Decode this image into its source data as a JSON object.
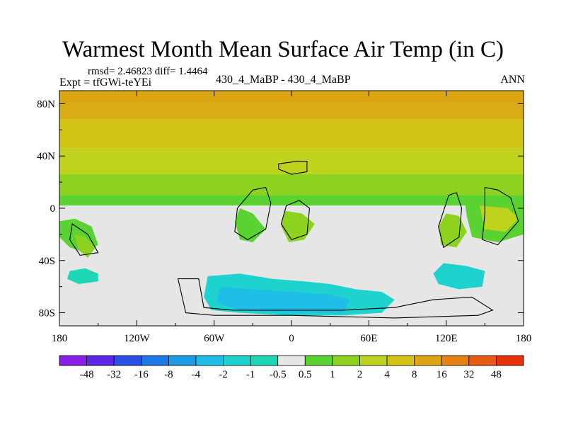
{
  "chart_data": {
    "type": "heatmap",
    "title": "Warmest Month Mean Surface Air Temp (in C)",
    "stats": "rmsd= 2.46823 diff= 1.4464",
    "experiment": "Expt = tfGWi-teYEi",
    "center_label": "430_4_MaBP - 430_4_MaBP",
    "season": "ANN",
    "x_range": [
      -180,
      180
    ],
    "y_range": [
      -90,
      90
    ],
    "x_ticks": [
      {
        "value": -180,
        "label": "180"
      },
      {
        "value": -120,
        "label": "120W"
      },
      {
        "value": -60,
        "label": "60W"
      },
      {
        "value": 0,
        "label": "0"
      },
      {
        "value": 60,
        "label": "60E"
      },
      {
        "value": 120,
        "label": "120E"
      },
      {
        "value": 180,
        "label": "180"
      }
    ],
    "y_ticks": [
      {
        "value": 80,
        "label": "80N"
      },
      {
        "value": 40,
        "label": "40N"
      },
      {
        "value": 0,
        "label": "0"
      },
      {
        "value": -40,
        "label": "40S"
      },
      {
        "value": -80,
        "label": "80S"
      }
    ],
    "colorbar": {
      "levels": [
        "-48",
        "-32",
        "-16",
        "-8",
        "-4",
        "-2",
        "-1",
        "-0.5",
        "0.5",
        "1",
        "2",
        "4",
        "8",
        "16",
        "32",
        "48"
      ],
      "colors": [
        "#8a1ee6",
        "#5a28e6",
        "#2a50e6",
        "#1e78e6",
        "#1e9be6",
        "#1ebee6",
        "#1ed2cd",
        "#1ed7b4",
        "#e6e6e6",
        "#5ad232",
        "#8cd21e",
        "#bed21e",
        "#d2c314",
        "#dca514",
        "#e68214",
        "#e65a14",
        "#e6320a"
      ]
    },
    "bands": [
      {
        "lat_from": 90,
        "lat_to": 80,
        "color": "#dca514"
      },
      {
        "lat_from": 80,
        "lat_to": 68,
        "color": "#d9ab14"
      },
      {
        "lat_from": 68,
        "lat_to": 46,
        "color": "#d2c314"
      },
      {
        "lat_from": 46,
        "lat_to": 26,
        "color": "#bed21e"
      },
      {
        "lat_from": 26,
        "lat_to": 10,
        "color": "#8cd21e"
      },
      {
        "lat_from": 10,
        "lat_to": 2,
        "color": "#5ad232"
      },
      {
        "lat_from": 2,
        "lat_to": -90,
        "color": "#e6e6e6"
      }
    ],
    "patches": [
      {
        "name": "south-cyan-region",
        "color": "#1ed2cd",
        "points": [
          [
            -65,
            -52
          ],
          [
            -40,
            -50
          ],
          [
            -15,
            -54
          ],
          [
            10,
            -56
          ],
          [
            30,
            -58
          ],
          [
            50,
            -62
          ],
          [
            70,
            -64
          ],
          [
            80,
            -70
          ],
          [
            70,
            -80
          ],
          [
            40,
            -82
          ],
          [
            0,
            -82
          ],
          [
            -40,
            -80
          ],
          [
            -62,
            -78
          ],
          [
            -68,
            -68
          ]
        ]
      },
      {
        "name": "south-blue-region",
        "color": "#1ebee6",
        "points": [
          [
            -55,
            -60
          ],
          [
            -30,
            -62
          ],
          [
            0,
            -64
          ],
          [
            30,
            -66
          ],
          [
            45,
            -70
          ],
          [
            40,
            -80
          ],
          [
            0,
            -80
          ],
          [
            -40,
            -78
          ],
          [
            -58,
            -72
          ]
        ]
      },
      {
        "name": "indian-cyan-region",
        "color": "#1ed2cd",
        "points": [
          [
            118,
            -42
          ],
          [
            135,
            -44
          ],
          [
            150,
            -48
          ],
          [
            148,
            -60
          ],
          [
            130,
            -62
          ],
          [
            114,
            -58
          ],
          [
            110,
            -50
          ]
        ]
      },
      {
        "name": "pacific-cyan-region",
        "color": "#1ed7b4",
        "points": [
          [
            -172,
            -48
          ],
          [
            -160,
            -46
          ],
          [
            -150,
            -50
          ],
          [
            -150,
            -56
          ],
          [
            -165,
            -58
          ],
          [
            -174,
            -54
          ]
        ]
      },
      {
        "name": "sw-green-region",
        "color": "#5ad232",
        "points": [
          [
            -180,
            -10
          ],
          [
            -168,
            -8
          ],
          [
            -155,
            -14
          ],
          [
            -150,
            -28
          ],
          [
            -160,
            -34
          ],
          [
            -172,
            -30
          ],
          [
            -180,
            -22
          ]
        ]
      },
      {
        "name": "s-america-green",
        "color": "#8cd21e",
        "points": [
          [
            -168,
            -20
          ],
          [
            -160,
            -22
          ],
          [
            -152,
            -30
          ],
          [
            -158,
            -38
          ],
          [
            -165,
            -32
          ]
        ]
      },
      {
        "name": "nw-africa-green",
        "color": "#5ad232",
        "points": [
          [
            -40,
            0
          ],
          [
            -30,
            -4
          ],
          [
            -20,
            -16
          ],
          [
            -30,
            -26
          ],
          [
            -40,
            -24
          ],
          [
            -44,
            -10
          ]
        ]
      },
      {
        "name": "africa-green",
        "color": "#8cd21e",
        "points": [
          [
            -5,
            -2
          ],
          [
            8,
            -4
          ],
          [
            18,
            -12
          ],
          [
            10,
            -24
          ],
          [
            -2,
            -26
          ],
          [
            -8,
            -14
          ]
        ]
      },
      {
        "name": "australia-green",
        "color": "#8cd21e",
        "points": [
          [
            120,
            -4
          ],
          [
            130,
            -6
          ],
          [
            136,
            -18
          ],
          [
            128,
            -30
          ],
          [
            116,
            -28
          ],
          [
            114,
            -14
          ]
        ]
      },
      {
        "name": "east-green",
        "color": "#5ad232",
        "points": [
          [
            134,
            8
          ],
          [
            160,
            6
          ],
          [
            180,
            4
          ],
          [
            180,
            -20
          ],
          [
            160,
            -26
          ],
          [
            140,
            -22
          ],
          [
            136,
            -6
          ]
        ]
      },
      {
        "name": "east-yellow",
        "color": "#bed21e",
        "points": [
          [
            146,
            2
          ],
          [
            168,
            0
          ],
          [
            176,
            -8
          ],
          [
            166,
            -18
          ],
          [
            150,
            -16
          ]
        ]
      }
    ],
    "outlines": [
      {
        "name": "northern-continent-outline",
        "points": [
          [
            -10,
            34
          ],
          [
            5,
            36
          ],
          [
            12,
            36
          ],
          [
            12,
            28
          ],
          [
            0,
            26
          ],
          [
            -10,
            30
          ]
        ]
      },
      {
        "name": "western-continent-outline",
        "points": [
          [
            -30,
            14
          ],
          [
            -20,
            16
          ],
          [
            -16,
            4
          ],
          [
            -20,
            -16
          ],
          [
            -34,
            -24
          ],
          [
            -44,
            -18
          ],
          [
            -42,
            0
          ]
        ]
      },
      {
        "name": "central-continent-outline",
        "points": [
          [
            -4,
            2
          ],
          [
            6,
            6
          ],
          [
            14,
            0
          ],
          [
            12,
            -20
          ],
          [
            0,
            -24
          ],
          [
            -8,
            -12
          ]
        ]
      },
      {
        "name": "eastern-continent-outline",
        "points": [
          [
            122,
            10
          ],
          [
            128,
            12
          ],
          [
            132,
            0
          ],
          [
            130,
            -22
          ],
          [
            118,
            -30
          ],
          [
            114,
            -14
          ]
        ]
      },
      {
        "name": "far-east-continent-outline",
        "points": [
          [
            150,
            16
          ],
          [
            160,
            14
          ],
          [
            170,
            8
          ],
          [
            176,
            -10
          ],
          [
            160,
            -28
          ],
          [
            148,
            -24
          ],
          [
            150,
            -4
          ]
        ]
      },
      {
        "name": "southwest-continent-outline",
        "points": [
          [
            -170,
            -12
          ],
          [
            -158,
            -20
          ],
          [
            -150,
            -34
          ],
          [
            -164,
            -36
          ],
          [
            -172,
            -24
          ]
        ]
      },
      {
        "name": "south-polar-outline",
        "points": [
          [
            -88,
            -54
          ],
          [
            -72,
            -54
          ],
          [
            -68,
            -76
          ],
          [
            -45,
            -78
          ],
          [
            0,
            -78
          ],
          [
            40,
            -78
          ],
          [
            80,
            -76
          ],
          [
            110,
            -70
          ],
          [
            140,
            -68
          ],
          [
            156,
            -78
          ],
          [
            145,
            -82
          ],
          [
            80,
            -84
          ],
          [
            0,
            -82
          ],
          [
            -60,
            -82
          ],
          [
            -82,
            -80
          ]
        ]
      }
    ]
  }
}
